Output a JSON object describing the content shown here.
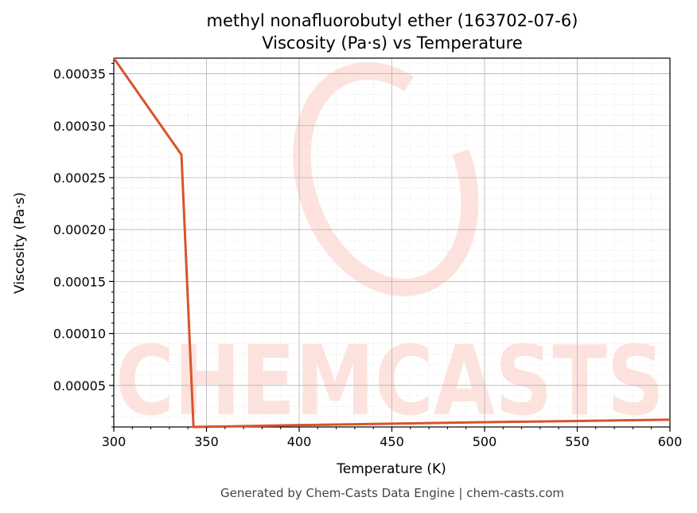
{
  "chart_data": {
    "type": "line",
    "title": "methyl nonafluorobutyl ether (163702-07-6)",
    "subtitle": "Viscosity (Pa·s) vs Temperature",
    "xlabel": "Temperature (K)",
    "ylabel": "Viscosity (Pa·s)",
    "xlim": [
      300,
      600
    ],
    "ylim": [
      1e-05,
      0.000365
    ],
    "x_ticks": [
      300,
      350,
      400,
      450,
      500,
      550,
      600
    ],
    "x_tick_labels": [
      "300",
      "350",
      "400",
      "450",
      "500",
      "550",
      "600"
    ],
    "y_ticks": [
      5e-05,
      0.0001,
      0.00015,
      0.0002,
      0.00025,
      0.0003,
      0.00035
    ],
    "y_tick_labels": [
      "0.00005",
      "0.00010",
      "0.00015",
      "0.00020",
      "0.00025",
      "0.00030",
      "0.00035"
    ],
    "grid": true,
    "line_color": "#d9532a",
    "series": [
      {
        "x": [
          300,
          336.5,
          343,
          350,
          400,
          450,
          500,
          550,
          600
        ],
        "y": [
          0.000365,
          0.000272,
          1e-05,
          1.02e-05,
          1.18e-05,
          1.32e-05,
          1.46e-05,
          1.58e-05,
          1.7e-05
        ]
      }
    ]
  },
  "watermark": {
    "text": "CHEMCASTS",
    "color": "#fcd9d2"
  },
  "footer": "Generated by Chem-Casts Data Engine | chem-casts.com"
}
